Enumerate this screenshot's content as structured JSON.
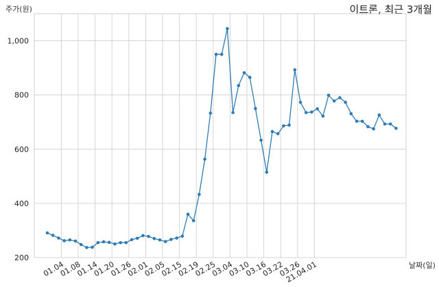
{
  "chart_data": {
    "type": "line",
    "title": "이트론, 최근 3개월",
    "ylabel": "주가(원)",
    "xlabel": "날짜(일)",
    "ylim": [
      200,
      1100
    ],
    "y_ticks": [
      200,
      400,
      600,
      800,
      1000
    ],
    "y_tick_labels": [
      "200",
      "400",
      "600",
      "800",
      "1,000"
    ],
    "x_tick_labels": [
      "01.04",
      "01.08",
      "01.14",
      "01.20",
      "01.26",
      "02.01",
      "02.05",
      "02.15",
      "02.19",
      "02.25",
      "03.04",
      "03.10",
      "03.16",
      "03.22",
      "03.26",
      "21.04.01"
    ],
    "x_tick_index": [
      2,
      5,
      8,
      11,
      14,
      17,
      20,
      23,
      26,
      29,
      32,
      35,
      38,
      41,
      44,
      47
    ],
    "grid": true,
    "series": [
      {
        "color": "#2e7bb4",
        "values": [
          291,
          282,
          272,
          262,
          265,
          261,
          248,
          237,
          238,
          255,
          258,
          256,
          250,
          255,
          255,
          266,
          271,
          281,
          278,
          270,
          265,
          259,
          267,
          272,
          279,
          360,
          336,
          433,
          563,
          733,
          950,
          950,
          1045,
          735,
          835,
          882,
          865,
          750,
          633,
          515,
          665,
          657,
          686,
          689,
          893,
          773,
          735,
          737,
          749,
          722,
          799,
          778,
          790,
          773,
          731,
          703,
          703,
          683,
          675,
          726,
          693,
          693,
          677
        ]
      }
    ]
  }
}
